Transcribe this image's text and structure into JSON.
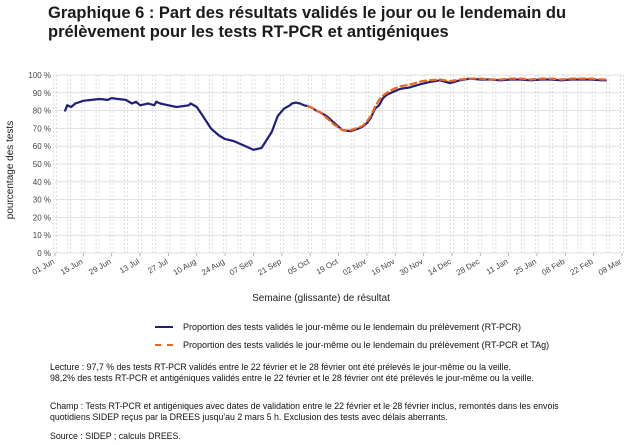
{
  "title_line1": "Graphique 6 : Part des résultats validés le jour ou le lendemain du",
  "title_line2": "prélèvement pour les tests RT-PCR et antigéniques",
  "chart_data": {
    "type": "line",
    "xlabel": "Semaine (glissante) de résultat",
    "ylabel": "pourcentage des tests",
    "ylim": [
      0,
      100
    ],
    "y_ticks": [
      0,
      10,
      20,
      30,
      40,
      50,
      60,
      70,
      80,
      90,
      100
    ],
    "y_tick_labels": [
      "0 %",
      "10 %",
      "20 %",
      "30 %",
      "40 %",
      "50 %",
      "60 %",
      "70 %",
      "80 %",
      "90 %",
      "100 %"
    ],
    "x_tick_labels": [
      "01 Jun",
      "15 Jun",
      "29 Jun",
      "13 Jul",
      "27 Jul",
      "10 Aug",
      "24 Aug",
      "07 Sep",
      "21 Sep",
      "05 Oct",
      "19 Oct",
      "02 Nov",
      "16 Nov",
      "30 Nov",
      "14 Dec",
      "28 Dec",
      "11 Jan",
      "25 Jan",
      "08 Feb",
      "22 Feb",
      "08 Mar"
    ],
    "grid": true,
    "legend_position": "bottom",
    "series": [
      {
        "name": "Proportion des tests validés le jour-même ou le lendemain du prélèvement (RT-PCR)",
        "color": "#1f1f7a",
        "style": "solid",
        "x": [
          5,
          6,
          8,
          10,
          14,
          18,
          22,
          26,
          28,
          31,
          35,
          38,
          40,
          42,
          46,
          49,
          50,
          52,
          56,
          60,
          63,
          66,
          67,
          70,
          73,
          77,
          81,
          84,
          88,
          92,
          96,
          98,
          102,
          107,
          110,
          113,
          116,
          117,
          119,
          121,
          123,
          125,
          127,
          129,
          131,
          134,
          136,
          138,
          142,
          146,
          150,
          152,
          154,
          156,
          158,
          160,
          162,
          164,
          166,
          168,
          170,
          172,
          175,
          178,
          181,
          185,
          190,
          195,
          200,
          205,
          210,
          215,
          220,
          225,
          230,
          235,
          240,
          245,
          250,
          255,
          260,
          265,
          270,
          272
        ],
        "values": [
          80,
          83,
          82,
          84,
          85.5,
          86,
          86.5,
          86,
          87,
          86.5,
          86,
          84,
          85,
          83,
          84,
          83,
          85,
          84,
          83,
          82,
          82.5,
          83,
          84,
          82,
          77,
          70,
          66,
          64,
          63,
          61,
          59,
          58,
          59,
          68,
          77,
          81,
          83,
          84,
          84.5,
          84,
          83,
          82.5,
          81.5,
          80,
          79,
          77,
          75,
          73,
          69,
          68.5,
          70,
          71,
          73,
          76,
          81,
          83,
          87,
          89,
          90,
          91,
          92,
          92.5,
          93,
          94,
          95,
          96,
          97,
          95.5,
          97,
          98,
          97.5,
          97.5,
          97,
          97.5,
          97.5,
          97,
          97.5,
          97.5,
          97,
          97.5,
          97.5,
          97.5,
          97,
          97
        ]
      },
      {
        "name": "Proportion des tests validés le jour-même ou le lendemain du prélèvement (RT-PCR et TAg)",
        "color": "#f2641e",
        "style": "dashed",
        "x": [
          125,
          127,
          129,
          131,
          134,
          136,
          138,
          142,
          146,
          150,
          152,
          154,
          156,
          158,
          160,
          162,
          164,
          166,
          168,
          170,
          172,
          175,
          178,
          181,
          185,
          190,
          195,
          200,
          205,
          210,
          215,
          220,
          225,
          230,
          235,
          240,
          245,
          250,
          255,
          260,
          265,
          270,
          272
        ],
        "values": [
          82.5,
          81.5,
          80,
          79,
          76,
          74,
          72,
          69,
          69,
          70.5,
          71.5,
          74,
          77,
          82,
          86,
          88.5,
          90,
          91.5,
          92.5,
          93.5,
          94,
          94.5,
          95.5,
          96.5,
          97,
          97.5,
          96.5,
          97.5,
          98,
          98,
          97.5,
          97.5,
          98,
          98,
          97.5,
          98,
          98,
          97.5,
          98,
          98,
          98,
          97.5,
          97.5
        ]
      }
    ]
  },
  "notes": {
    "lecture_line1": "Lecture : 97,7 % des tests RT-PCR validés entre le 22 février et le 28 février ont été prélevés le jour-même ou la veille.",
    "lecture_line2": "98,2% des tests RT-PCR et antigéniques validés entre le 22 février et le 28 février ont été prélevés le jour-même ou la veille.",
    "champ_line1": "Champ : Tests RT-PCR et antigéniques avec dates de validation entre le 22 février et le 28 février inclus, remontés dans les envois",
    "champ_line2": "quotidiens SIDEP reçus par la DREES jusqu'au 2 mars 5 h. Exclusion des tests avec délais aberrants.",
    "source": "Source : SIDEP ; calculs DREES."
  }
}
